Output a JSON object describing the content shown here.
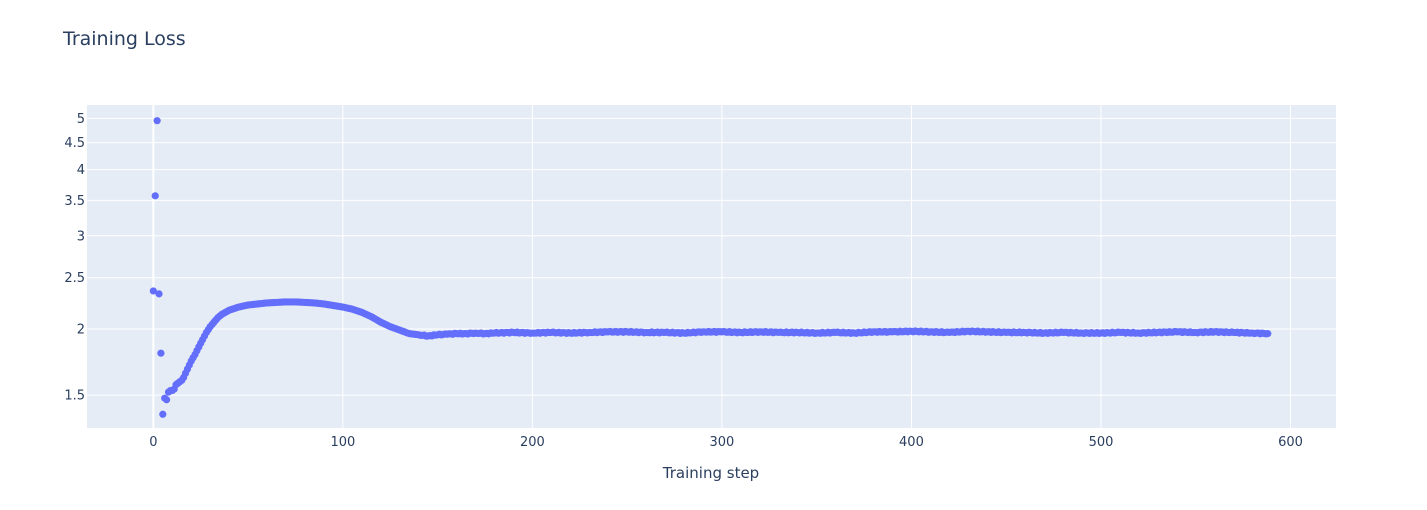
{
  "chart_data": {
    "type": "scatter",
    "title": "Training Loss",
    "xlabel": "Training step",
    "ylabel": "",
    "y_scale": "log",
    "xlim": [
      -35,
      624
    ],
    "ylim": [
      1.3,
      5.3
    ],
    "grid": true,
    "legend": "none",
    "marker_color": "#636efa",
    "background_color": "#e5ecf6",
    "x_ticks": [
      0,
      100,
      200,
      300,
      400,
      500,
      600
    ],
    "x_tick_labels": [
      "0",
      "100",
      "200",
      "300",
      "400",
      "500",
      "600"
    ],
    "y_ticks": [
      1.5,
      2,
      2.5,
      3,
      3.5,
      4,
      4.5,
      5
    ],
    "y_tick_labels": [
      "1.5",
      "2",
      "2.5",
      "3",
      "3.5",
      "4",
      "4.5",
      "5"
    ],
    "series": [
      {
        "x": [
          0,
          1,
          2,
          3,
          4,
          5,
          6,
          7,
          8,
          9,
          10,
          11,
          12,
          13,
          14,
          15,
          16,
          17,
          18,
          19,
          20,
          22,
          24,
          26,
          28,
          30,
          32,
          34,
          36,
          38,
          40,
          45,
          50,
          55,
          60,
          65,
          70,
          75,
          80,
          85,
          90,
          95,
          100,
          105,
          110,
          115,
          120,
          125,
          130,
          135,
          140,
          145,
          150,
          155,
          160,
          165,
          170,
          175,
          180,
          190,
          200,
          210,
          220,
          230,
          240,
          250,
          260,
          270,
          280,
          290,
          300,
          310,
          320,
          330,
          340,
          350,
          360,
          370,
          380,
          390,
          400,
          410,
          420,
          430,
          440,
          450,
          460,
          470,
          480,
          490,
          500,
          510,
          520,
          530,
          540,
          550,
          560,
          570,
          580,
          588
        ],
        "y": [
          2.36,
          3.57,
          4.95,
          2.33,
          1.8,
          1.38,
          1.48,
          1.47,
          1.52,
          1.53,
          1.53,
          1.54,
          1.57,
          1.58,
          1.59,
          1.6,
          1.62,
          1.65,
          1.68,
          1.71,
          1.74,
          1.79,
          1.85,
          1.91,
          1.97,
          2.02,
          2.06,
          2.1,
          2.13,
          2.15,
          2.17,
          2.2,
          2.22,
          2.23,
          2.24,
          2.245,
          2.25,
          2.25,
          2.245,
          2.24,
          2.23,
          2.215,
          2.2,
          2.18,
          2.15,
          2.11,
          2.06,
          2.02,
          1.99,
          1.96,
          1.95,
          1.94,
          1.95,
          1.955,
          1.96,
          1.96,
          1.965,
          1.96,
          1.965,
          1.97,
          1.965,
          1.97,
          1.965,
          1.97,
          1.975,
          1.975,
          1.97,
          1.97,
          1.965,
          1.975,
          1.975,
          1.97,
          1.975,
          1.97,
          1.97,
          1.965,
          1.97,
          1.965,
          1.975,
          1.975,
          1.98,
          1.975,
          1.97,
          1.98,
          1.975,
          1.97,
          1.97,
          1.965,
          1.97,
          1.965,
          1.965,
          1.97,
          1.965,
          1.97,
          1.975,
          1.97,
          1.975,
          1.97,
          1.965,
          1.96
        ]
      }
    ]
  }
}
